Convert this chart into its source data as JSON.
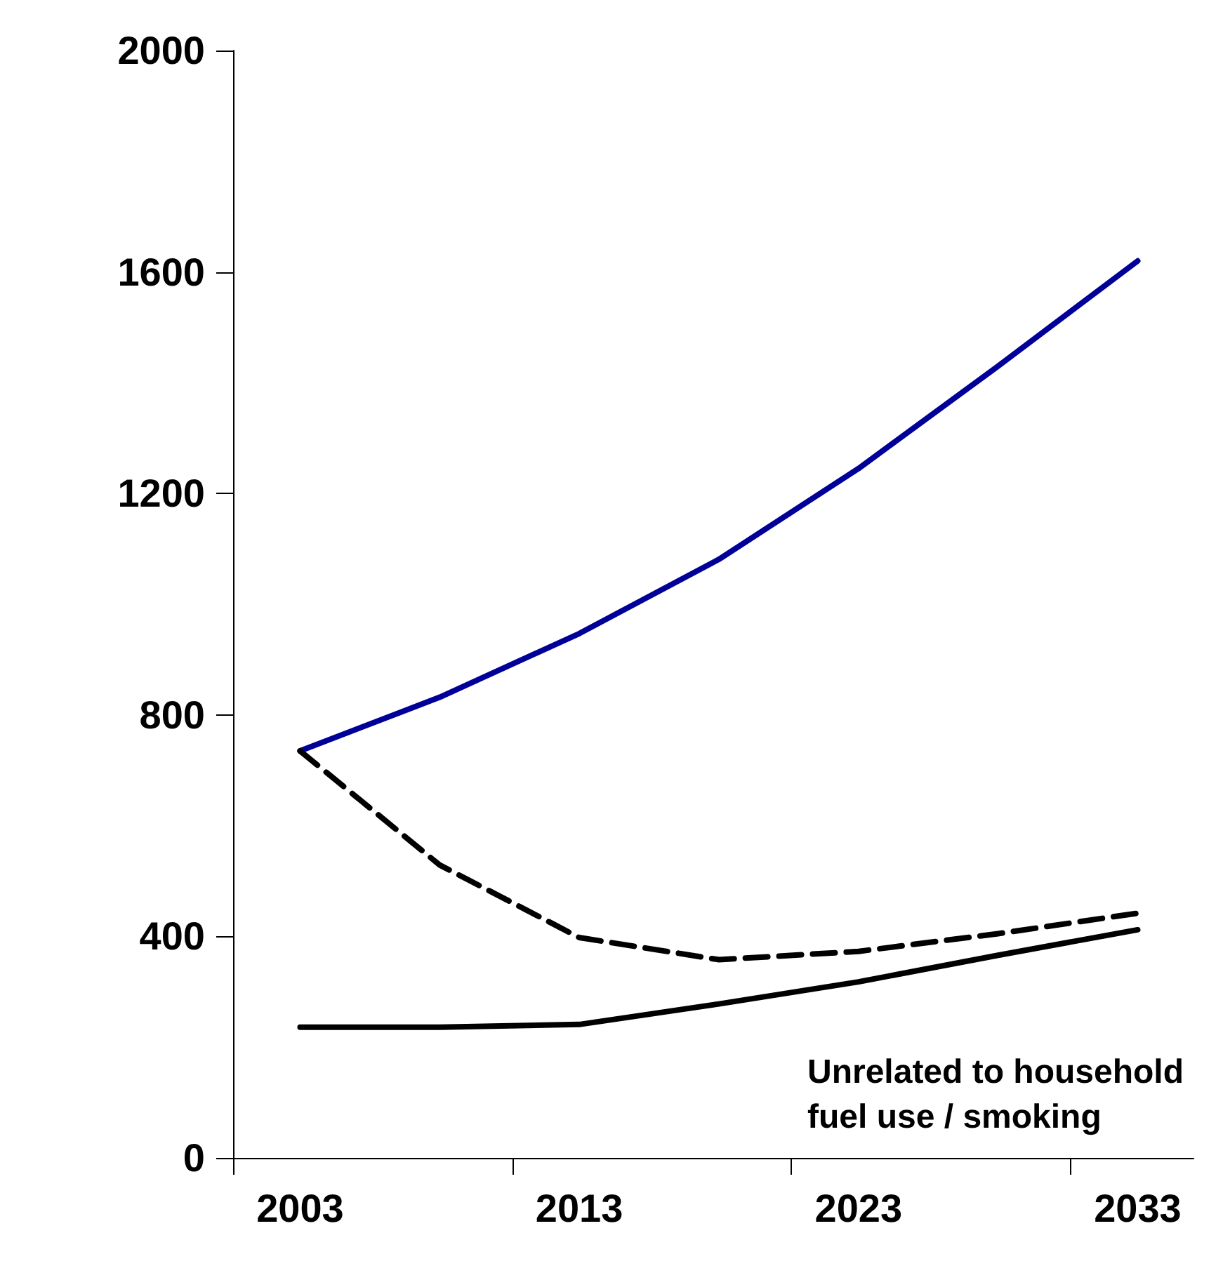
{
  "chart_data": {
    "type": "line",
    "x": [
      2003,
      2008,
      2013,
      2018,
      2023,
      2028,
      2033
    ],
    "series": [
      {
        "color": "#000099",
        "values": [
          735,
          832,
          947,
          1081,
          1245,
          1430,
          1620
        ]
      },
      {
        "color": "#000000",
        "line_style": "dashed",
        "values": [
          735,
          529,
          398,
          358,
          373,
          405,
          442
        ]
      },
      {
        "color": "#000000",
        "values": [
          236,
          236,
          241,
          278,
          318,
          366,
          412
        ]
      }
    ],
    "xlim": [
      2000.6,
      2035
    ],
    "xticks": [
      2003,
      2013,
      2023,
      2033,
      {
        "value": 2000.6,
        "label": null
      },
      {
        "value": 2010.6,
        "label": null
      },
      {
        "value": 2020.6,
        "label": null
      },
      {
        "value": 2030.6,
        "label": null
      }
    ],
    "ylim": [
      0,
      2000
    ],
    "yticks": [
      0,
      400,
      800,
      1200,
      1600,
      2000
    ],
    "grid": false,
    "marker": "none",
    "line_style": "solid",
    "annotations": [
      "Unrelated to household fuel use / smoking"
    ]
  }
}
